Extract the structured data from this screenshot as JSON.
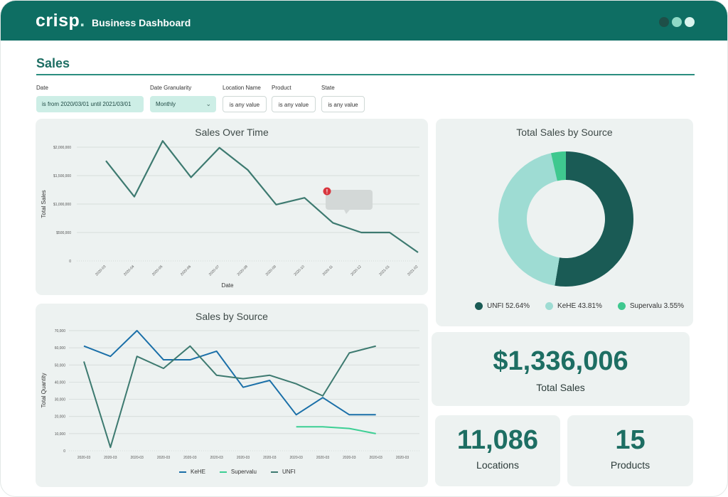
{
  "brand": {
    "logo_text": "crisp",
    "logo_dot": ".",
    "app_title": "Business Dashboard"
  },
  "window_controls": [
    {
      "name": "dark",
      "color": "#1e4f48"
    },
    {
      "name": "patterned",
      "color": "#8fd9c6"
    },
    {
      "name": "light",
      "color": "#d9f3ed"
    }
  ],
  "section": {
    "title": "Sales"
  },
  "filters": {
    "date": {
      "label": "Date",
      "value": "is from 2020/03/01 until 2021/03/01"
    },
    "granularity": {
      "label": "Date Granularity",
      "value": "Monthly"
    },
    "location": {
      "label": "Location Name",
      "value": "is any value"
    },
    "product": {
      "label": "Product",
      "value": "is any value"
    },
    "state": {
      "label": "State",
      "value": "is any value"
    }
  },
  "colors": {
    "primary": "#1d6e63",
    "kehe": "#1a6fa8",
    "supervalu": "#3ccf94",
    "unfi": "#3d7a70",
    "unfi_donut": "#1a5b55",
    "kehe_donut": "#9edcd3",
    "supervalu_donut": "#3fc88f",
    "alert": "#d9363e"
  },
  "sales_over_time": {
    "title": "Sales Over Time",
    "chart_data": {
      "type": "line",
      "title": "Sales Over Time",
      "xlabel": "Date",
      "ylabel": "Total Sales",
      "ylim": [
        0,
        2000000
      ],
      "y_ticks": [
        "0",
        "$500,000",
        "$1,000,000",
        "$1,500,000",
        "$2,000,000"
      ],
      "categories": [
        "2020-03",
        "2020-04",
        "2020-05",
        "2020-06",
        "2020-07",
        "2020-08",
        "2020-09",
        "2020-10",
        "2020-11",
        "2020-12",
        "2021-01",
        "2021-02"
      ],
      "values": [
        1760000,
        1130000,
        2110000,
        1470000,
        1990000,
        1600000,
        990000,
        1110000,
        670000,
        500000,
        500000,
        150000
      ]
    }
  },
  "total_by_source": {
    "title": "Total Sales by Source",
    "chart_data": {
      "type": "pie",
      "title": "Total Sales by Source",
      "labels": [
        "UNFI",
        "KeHE",
        "Supervalu"
      ],
      "values": [
        52.64,
        43.81,
        3.55
      ],
      "legend": [
        "UNFI 52.64%",
        "KeHE 43.81%",
        "Supervalu 3.55%"
      ]
    }
  },
  "sales_by_source": {
    "title": "Sales by Source",
    "chart_data": {
      "type": "line",
      "title": "Sales by Source",
      "ylabel": "Total Quantity",
      "ylim": [
        0,
        70000
      ],
      "y_ticks": [
        "0",
        "10,000",
        "20,000",
        "30,000",
        "40,000",
        "50,000",
        "60,000",
        "70,000"
      ],
      "categories": [
        "2020-03",
        "2020-03",
        "2020-03",
        "2020-03",
        "2020-03",
        "2020-03",
        "2020-03",
        "2020-03",
        "2020-03",
        "2020-03",
        "2020-03",
        "2020-03",
        "2020-03"
      ],
      "series": [
        {
          "name": "KeHE",
          "values": [
            61000,
            55000,
            70000,
            53000,
            53000,
            58000,
            37000,
            41000,
            21000,
            31000,
            21000,
            21000,
            null
          ]
        },
        {
          "name": "Supervalu",
          "values": [
            null,
            null,
            null,
            null,
            null,
            null,
            null,
            null,
            14000,
            14000,
            13000,
            10000,
            null
          ]
        },
        {
          "name": "UNFI",
          "values": [
            52000,
            2000,
            55000,
            48000,
            61000,
            44000,
            42000,
            44000,
            39000,
            32000,
            57000,
            61000,
            null
          ]
        }
      ],
      "legend": [
        "KeHE",
        "Supervalu",
        "UNFI"
      ]
    }
  },
  "kpis": {
    "total_sales": {
      "value": "$1,336,006",
      "label": "Total Sales"
    },
    "locations": {
      "value": "11,086",
      "label": "Locations"
    },
    "products": {
      "value": "15",
      "label": "Products"
    }
  }
}
